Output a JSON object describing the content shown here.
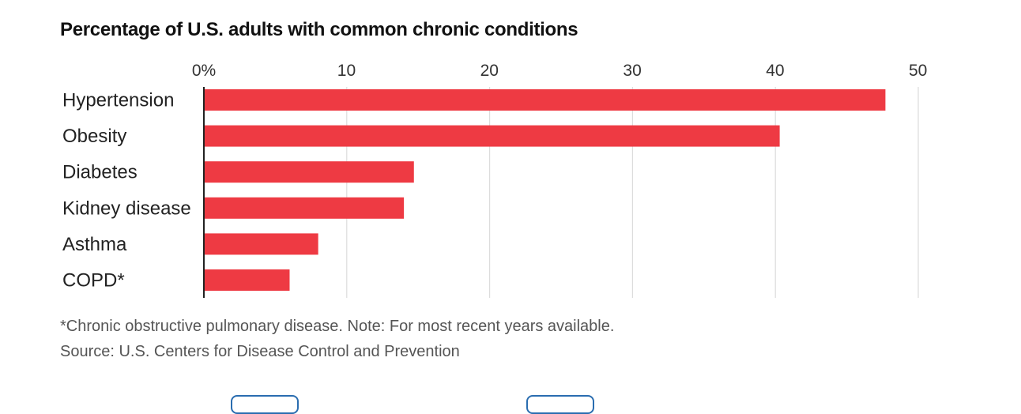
{
  "title": "Percentage of U.S. adults with common chronic conditions",
  "footnote": "*Chronic obstructive pulmonary disease. Note: For most recent years available.",
  "source": "Source: U.S. Centers for Disease Control and Prevention",
  "colors": {
    "bar": "#ee3a43",
    "grid": "#dcdcdc",
    "axis": "#222222"
  },
  "chart_data": {
    "type": "bar",
    "orientation": "horizontal",
    "title": "Percentage of U.S. adults with common chronic conditions",
    "categories": [
      "Hypertension",
      "Obesity",
      "Diabetes",
      "Kidney disease",
      "Asthma",
      "COPD*"
    ],
    "values": [
      47.7,
      40.3,
      14.7,
      14.0,
      8.0,
      6.0
    ],
    "xlim": [
      0,
      50
    ],
    "xticks": [
      0,
      10,
      20,
      30,
      40,
      50
    ],
    "xtick_labels": [
      "0%",
      "10",
      "20",
      "30",
      "40",
      "50"
    ],
    "grid": true
  }
}
